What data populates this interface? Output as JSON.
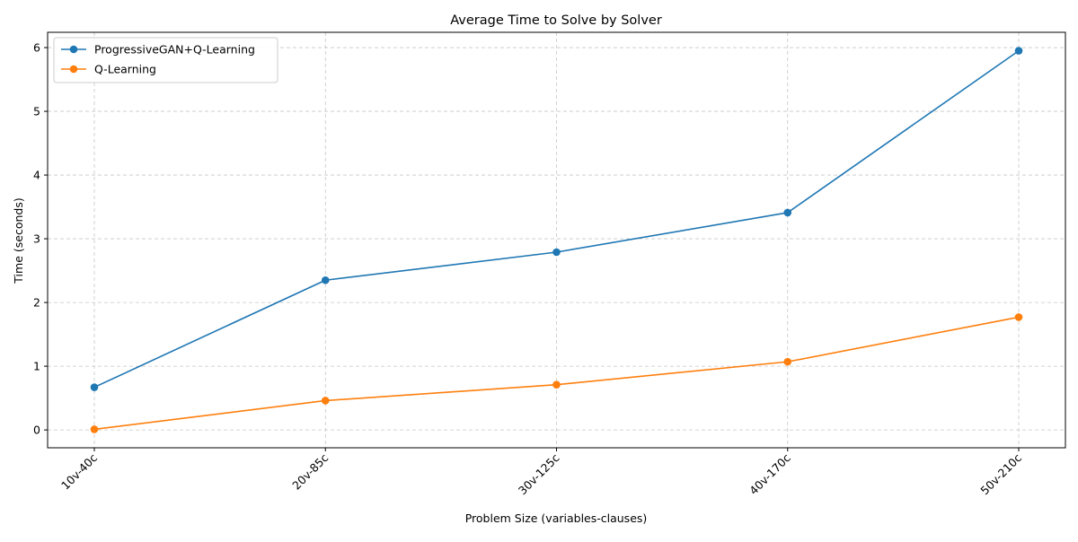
{
  "chart_data": {
    "type": "line",
    "title": "Average Time to Solve by Solver",
    "xlabel": "Problem Size (variables-clauses)",
    "ylabel": "Time (seconds)",
    "categories": [
      "10v-40c",
      "20v-85c",
      "30v-125c",
      "40v-170c",
      "50v-210c"
    ],
    "ylim": [
      -0.28,
      6.24
    ],
    "yticks": [
      0,
      1,
      2,
      3,
      4,
      5,
      6
    ],
    "grid": true,
    "legend_position": "top-left",
    "series": [
      {
        "name": "ProgressiveGAN+Q-Learning",
        "color": "#1f77b4",
        "values": [
          0.67,
          2.35,
          2.79,
          3.41,
          5.95
        ]
      },
      {
        "name": "Q-Learning",
        "color": "#ff7f0e",
        "values": [
          0.01,
          0.46,
          0.71,
          1.07,
          1.77
        ]
      }
    ]
  }
}
